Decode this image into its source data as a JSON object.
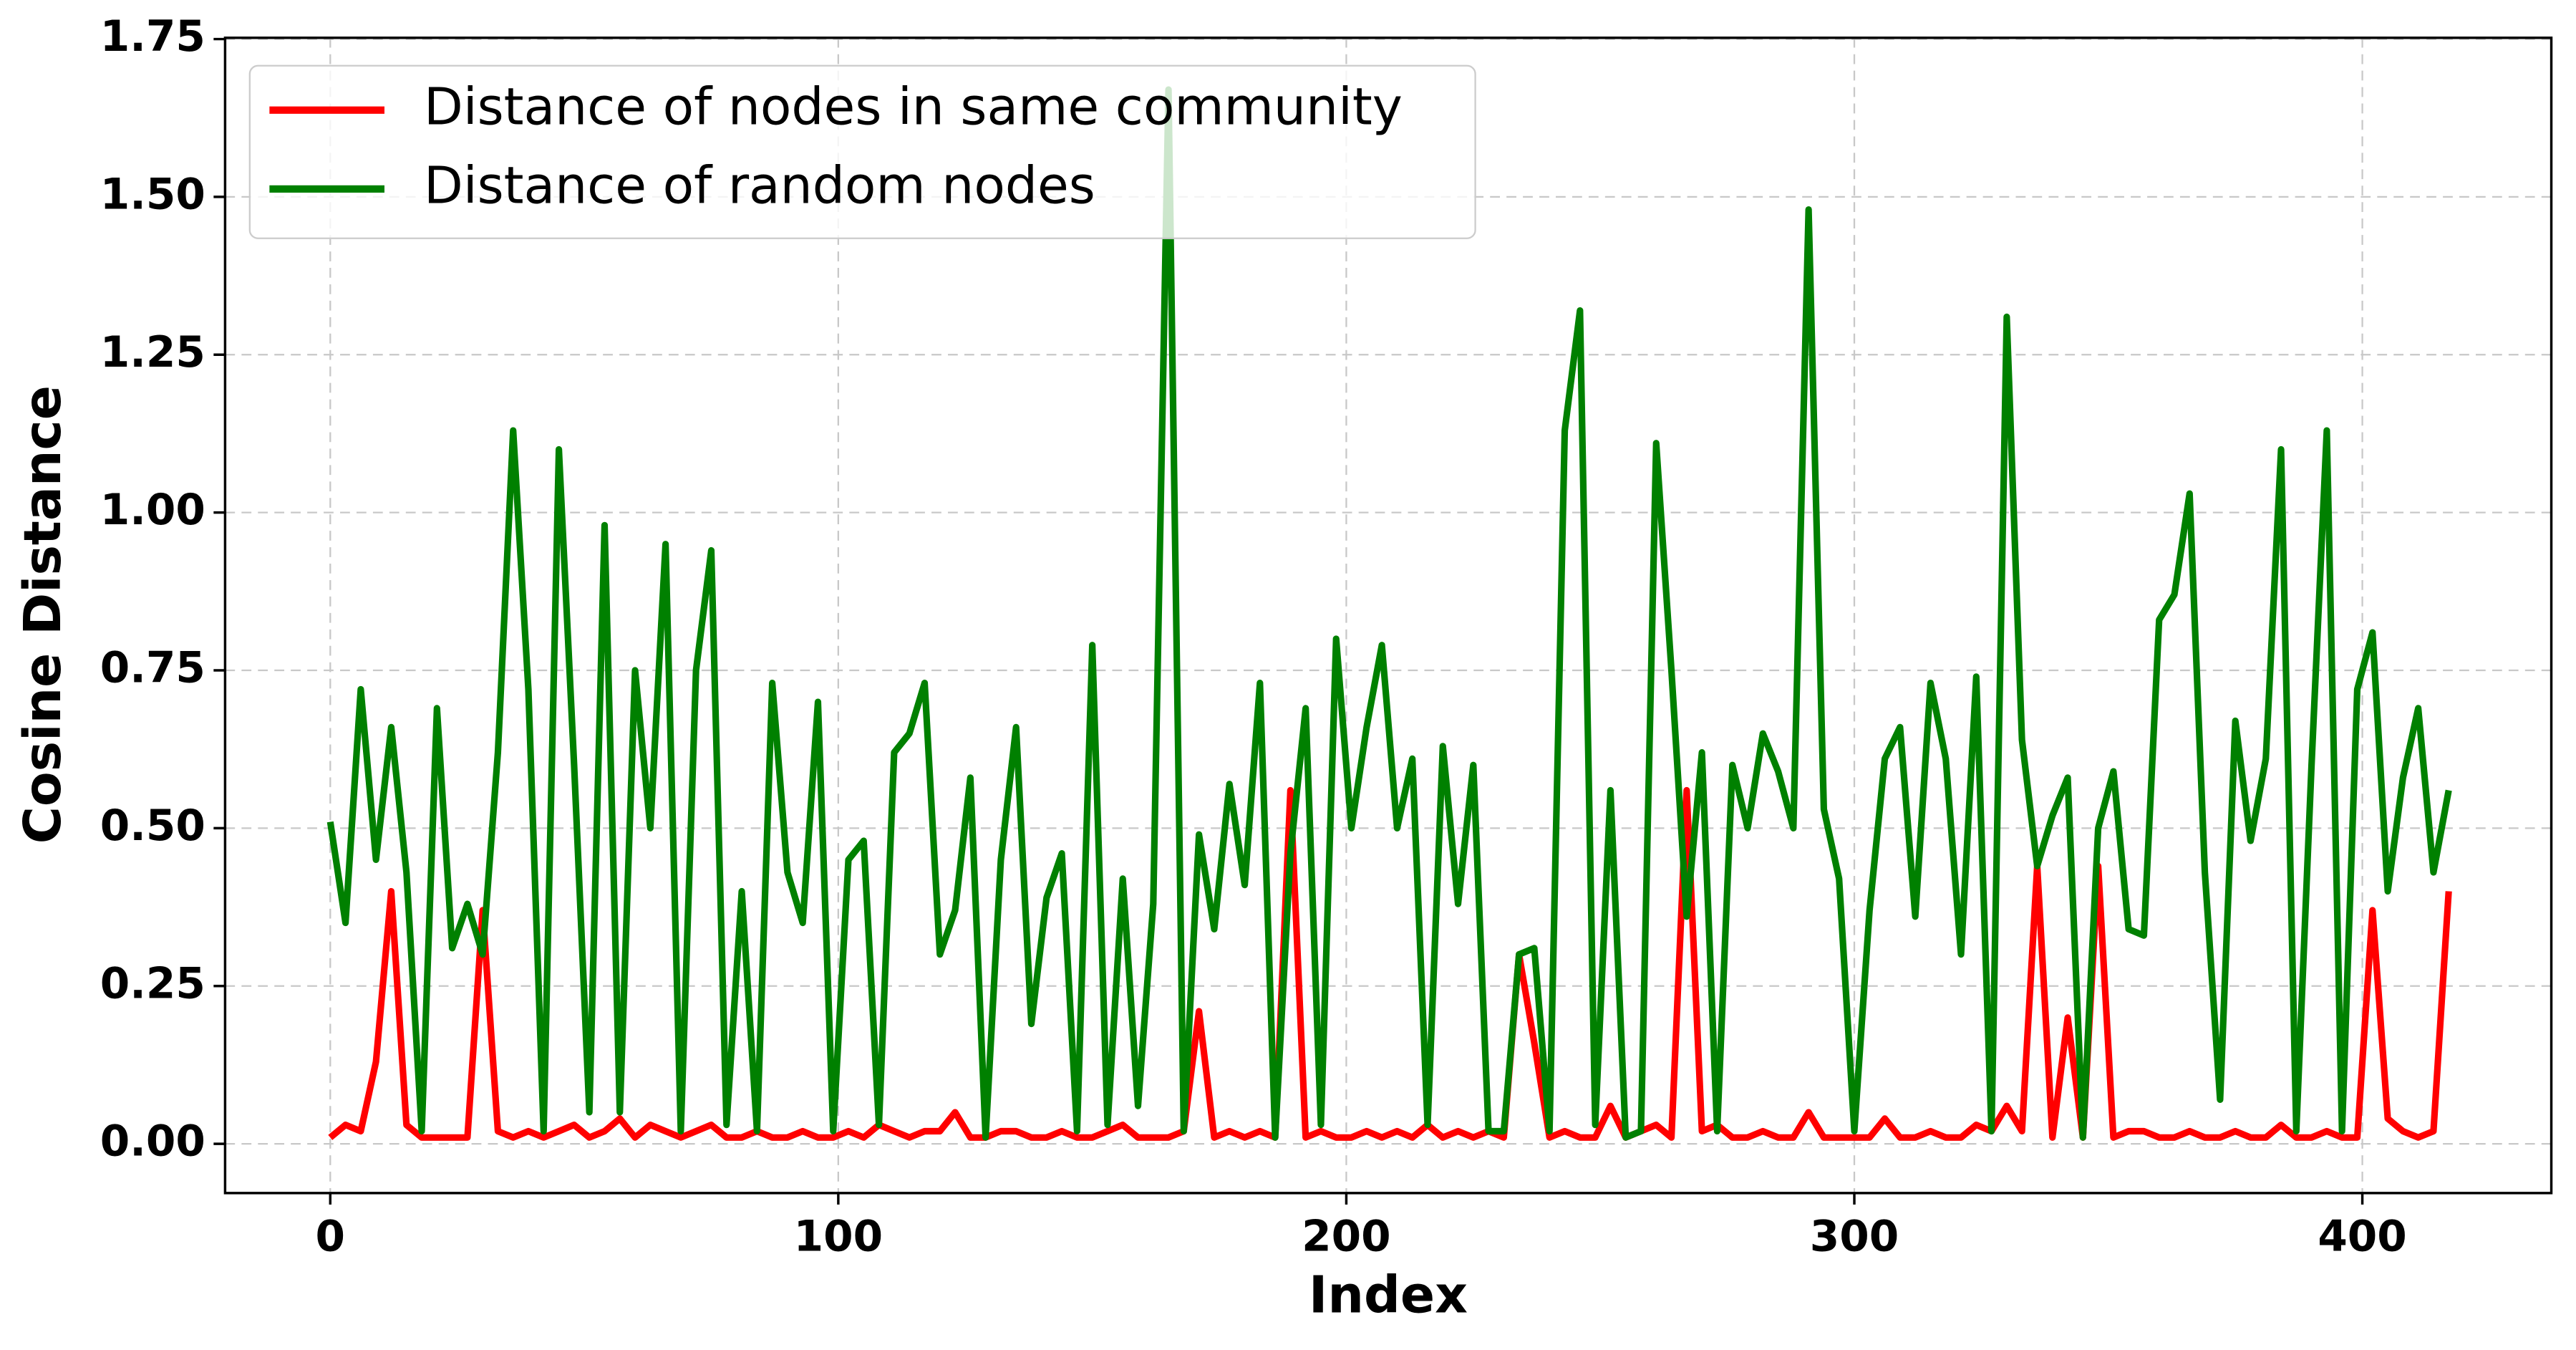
{
  "chart_data": {
    "type": "line",
    "xlabel": "Index",
    "ylabel": "Cosine Distance",
    "x": [
      0,
      3,
      6,
      9,
      12,
      15,
      18,
      21,
      24,
      27,
      30,
      33,
      36,
      39,
      42,
      45,
      48,
      51,
      54,
      57,
      60,
      63,
      66,
      69,
      72,
      75,
      78,
      81,
      84,
      87,
      90,
      93,
      96,
      99,
      102,
      105,
      108,
      111,
      114,
      117,
      120,
      123,
      126,
      129,
      132,
      135,
      138,
      141,
      144,
      147,
      150,
      153,
      156,
      159,
      162,
      165,
      168,
      171,
      174,
      177,
      180,
      183,
      186,
      189,
      192,
      195,
      198,
      201,
      204,
      207,
      210,
      213,
      216,
      219,
      222,
      225,
      228,
      231,
      234,
      237,
      240,
      243,
      246,
      249,
      252,
      255,
      258,
      261,
      264,
      267,
      270,
      273,
      276,
      279,
      282,
      285,
      288,
      291,
      294,
      297,
      300,
      303,
      306,
      309,
      312,
      315,
      318,
      321,
      324,
      327,
      330,
      333,
      336,
      339,
      342,
      345,
      348,
      351,
      354,
      357,
      360,
      363,
      366,
      369,
      372,
      375,
      378,
      381,
      384,
      387,
      390,
      393,
      396,
      399,
      402,
      405,
      408,
      411,
      414,
      417
    ],
    "series": [
      {
        "name": "Distance of nodes in same community",
        "color": "#ff0000",
        "values": [
          0.01,
          0.03,
          0.02,
          0.13,
          0.4,
          0.03,
          0.01,
          0.01,
          0.01,
          0.01,
          0.37,
          0.02,
          0.01,
          0.02,
          0.01,
          0.02,
          0.03,
          0.01,
          0.02,
          0.04,
          0.01,
          0.03,
          0.02,
          0.01,
          0.02,
          0.03,
          0.01,
          0.01,
          0.02,
          0.01,
          0.01,
          0.02,
          0.01,
          0.01,
          0.02,
          0.01,
          0.03,
          0.02,
          0.01,
          0.02,
          0.02,
          0.05,
          0.01,
          0.01,
          0.02,
          0.02,
          0.01,
          0.01,
          0.02,
          0.01,
          0.01,
          0.02,
          0.03,
          0.01,
          0.01,
          0.01,
          0.02,
          0.21,
          0.01,
          0.02,
          0.01,
          0.02,
          0.01,
          0.56,
          0.01,
          0.02,
          0.01,
          0.01,
          0.02,
          0.01,
          0.02,
          0.01,
          0.03,
          0.01,
          0.02,
          0.01,
          0.02,
          0.01,
          0.3,
          0.16,
          0.01,
          0.02,
          0.01,
          0.01,
          0.06,
          0.01,
          0.02,
          0.03,
          0.01,
          0.56,
          0.02,
          0.03,
          0.01,
          0.01,
          0.02,
          0.01,
          0.01,
          0.05,
          0.01,
          0.01,
          0.01,
          0.01,
          0.04,
          0.01,
          0.01,
          0.02,
          0.01,
          0.01,
          0.03,
          0.02,
          0.06,
          0.02,
          0.44,
          0.01,
          0.2,
          0.01,
          0.44,
          0.01,
          0.02,
          0.02,
          0.01,
          0.01,
          0.02,
          0.01,
          0.01,
          0.02,
          0.01,
          0.01,
          0.03,
          0.01,
          0.01,
          0.02,
          0.01,
          0.01,
          0.37,
          0.04,
          0.02,
          0.01,
          0.02,
          0.4
        ]
      },
      {
        "name": "Distance of random nodes",
        "color": "#008000",
        "values": [
          0.51,
          0.35,
          0.72,
          0.45,
          0.66,
          0.43,
          0.02,
          0.69,
          0.31,
          0.38,
          0.3,
          0.62,
          1.13,
          0.72,
          0.02,
          1.1,
          0.6,
          0.05,
          0.98,
          0.05,
          0.75,
          0.5,
          0.95,
          0.02,
          0.75,
          0.94,
          0.03,
          0.4,
          0.02,
          0.73,
          0.43,
          0.35,
          0.7,
          0.02,
          0.45,
          0.48,
          0.03,
          0.62,
          0.65,
          0.73,
          0.3,
          0.37,
          0.58,
          0.01,
          0.45,
          0.66,
          0.19,
          0.39,
          0.46,
          0.02,
          0.79,
          0.03,
          0.42,
          0.06,
          0.38,
          1.67,
          0.02,
          0.49,
          0.34,
          0.57,
          0.41,
          0.73,
          0.01,
          0.46,
          0.69,
          0.03,
          0.8,
          0.5,
          0.66,
          0.79,
          0.5,
          0.61,
          0.03,
          0.63,
          0.38,
          0.6,
          0.02,
          0.02,
          0.3,
          0.31,
          0.02,
          1.13,
          1.32,
          0.03,
          0.56,
          0.01,
          0.02,
          1.11,
          0.75,
          0.36,
          0.62,
          0.02,
          0.6,
          0.5,
          0.65,
          0.59,
          0.5,
          1.48,
          0.53,
          0.42,
          0.02,
          0.37,
          0.61,
          0.66,
          0.36,
          0.73,
          0.61,
          0.3,
          0.74,
          0.02,
          1.31,
          0.64,
          0.44,
          0.52,
          0.58,
          0.01,
          0.5,
          0.59,
          0.34,
          0.33,
          0.83,
          0.87,
          1.03,
          0.43,
          0.07,
          0.67,
          0.48,
          0.61,
          1.1,
          0.02,
          0.6,
          1.13,
          0.02,
          0.72,
          0.81,
          0.4,
          0.58,
          0.69,
          0.43,
          0.56
        ]
      }
    ],
    "xlim": [
      -20.7,
      437.2
    ],
    "xticks": [
      0,
      100,
      200,
      300,
      400
    ],
    "ylim": [
      -0.078,
      1.752
    ],
    "yticks": [
      {
        "value": 0,
        "label": "0.00"
      },
      0.25,
      {
        "value": 0.5,
        "label": "0.50"
      },
      0.75,
      {
        "value": 1,
        "label": "1.00"
      },
      1.25,
      {
        "value": 1.5,
        "label": "1.50"
      },
      1.75
    ],
    "grid": true,
    "legend": "upper left"
  }
}
